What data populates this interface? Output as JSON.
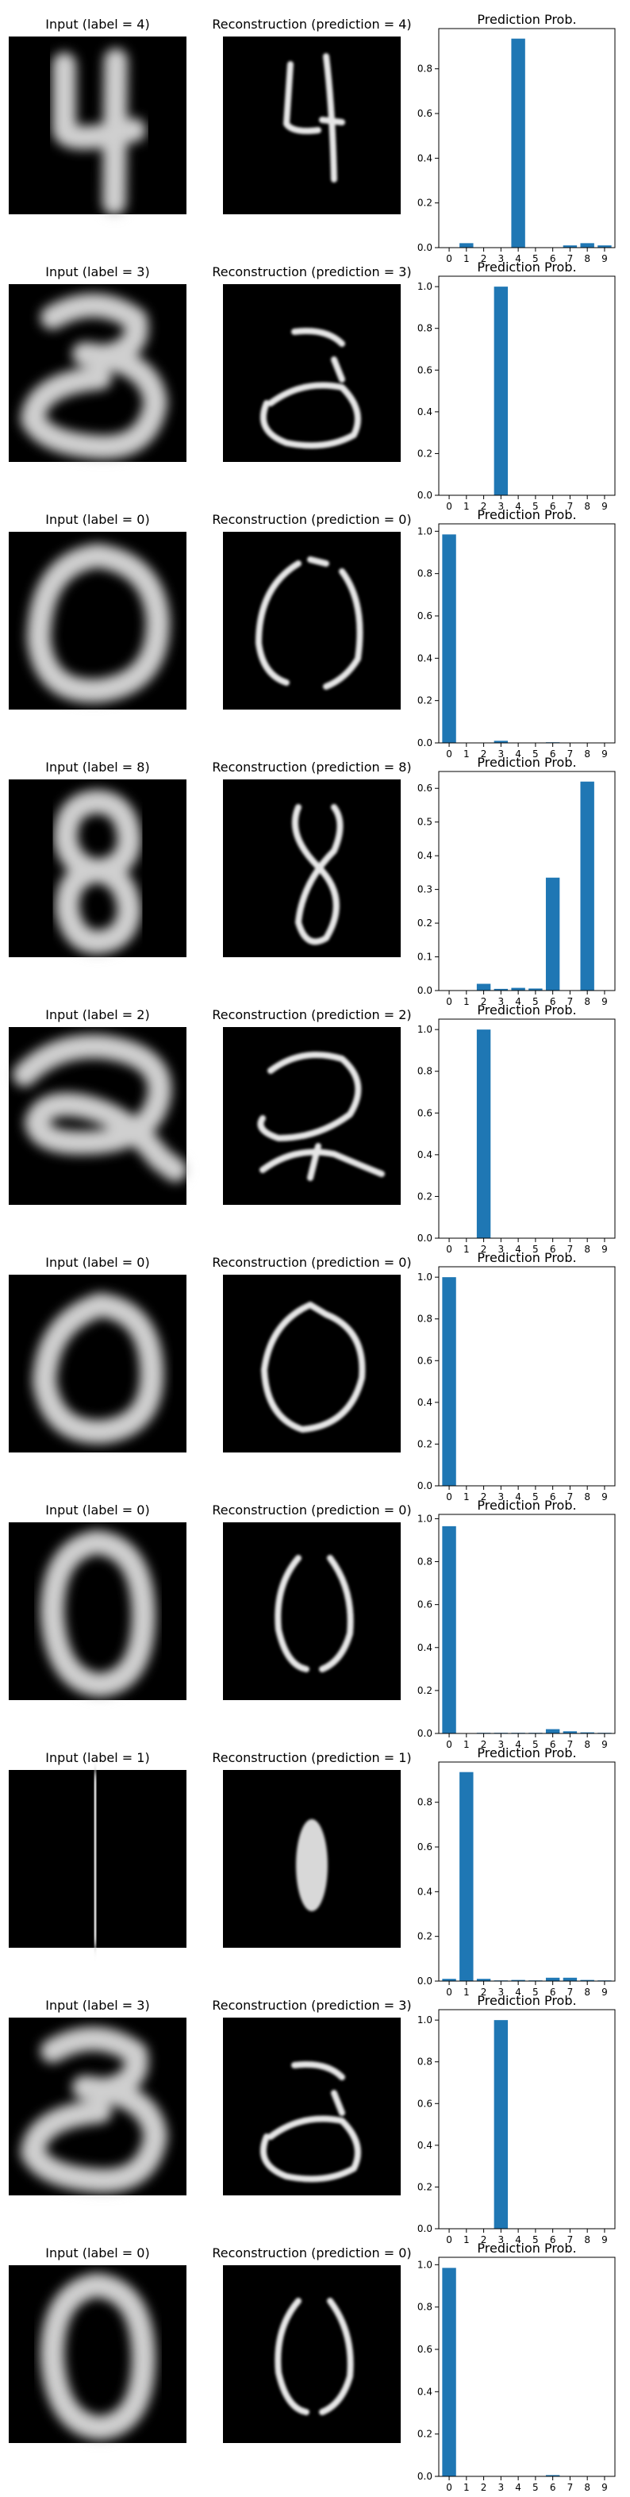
{
  "figure": {
    "panel_colors": {
      "bar": "#1f77b4",
      "image_background": "#000000",
      "axes": "#000000"
    }
  },
  "rows": [
    {
      "input_title": "Input (label = 4)",
      "recon_title": "Reconstruction (prediction = 4)",
      "input_digit": "4",
      "recon_digit": "4"
    },
    {
      "input_title": "Input (label = 3)",
      "recon_title": "Reconstruction (prediction = 3)",
      "input_digit": "3",
      "recon_digit": "3"
    },
    {
      "input_title": "Input (label = 0)",
      "recon_title": "Reconstruction (prediction = 0)",
      "input_digit": "0",
      "recon_digit": "0"
    },
    {
      "input_title": "Input (label = 8)",
      "recon_title": "Reconstruction (prediction = 8)",
      "input_digit": "8",
      "recon_digit": "8"
    },
    {
      "input_title": "Input (label = 2)",
      "recon_title": "Reconstruction (prediction = 2)",
      "input_digit": "2",
      "recon_digit": "2"
    },
    {
      "input_title": "Input (label = 0)",
      "recon_title": "Reconstruction (prediction = 0)",
      "input_digit": "0",
      "recon_digit": "0"
    },
    {
      "input_title": "Input (label = 0)",
      "recon_title": "Reconstruction (prediction = 0)",
      "input_digit": "0",
      "recon_digit": "0"
    },
    {
      "input_title": "Input (label = 1)",
      "recon_title": "Reconstruction (prediction = 1)",
      "input_digit": "1",
      "recon_digit": "1"
    },
    {
      "input_title": "Input (label = 3)",
      "recon_title": "Reconstruction (prediction = 3)",
      "input_digit": "3",
      "recon_digit": "3"
    },
    {
      "input_title": "Input (label = 0)",
      "recon_title": "Reconstruction (prediction = 0)",
      "input_digit": "0",
      "recon_digit": "0"
    }
  ],
  "chart_data": [
    {
      "type": "bar",
      "title": "Prediction Prob.",
      "categories": [
        "0",
        "1",
        "2",
        "3",
        "4",
        "5",
        "6",
        "7",
        "8",
        "9"
      ],
      "values": [
        0.0,
        0.02,
        0.0,
        0.0,
        0.935,
        0.0,
        0.0,
        0.01,
        0.02,
        0.01
      ],
      "ylim": [
        0,
        0.98
      ],
      "yticks": [
        0.0,
        0.2,
        0.4,
        0.6,
        0.8
      ],
      "ytick_labels": [
        "0.0",
        "0.2",
        "0.4",
        "0.6",
        "0.8"
      ]
    },
    {
      "type": "bar",
      "title": "Prediction Prob.",
      "categories": [
        "0",
        "1",
        "2",
        "3",
        "4",
        "5",
        "6",
        "7",
        "8",
        "9"
      ],
      "values": [
        0.0,
        0.0,
        0.0,
        1.0,
        0.0,
        0.0,
        0.0,
        0.0,
        0.0,
        0.0
      ],
      "ylim": [
        0,
        1.05
      ],
      "yticks": [
        0.0,
        0.2,
        0.4,
        0.6,
        0.8,
        1.0
      ],
      "ytick_labels": [
        "0.0",
        "0.2",
        "0.4",
        "0.6",
        "0.8",
        "1.0"
      ]
    },
    {
      "type": "bar",
      "title": "Prediction Prob.",
      "categories": [
        "0",
        "1",
        "2",
        "3",
        "4",
        "5",
        "6",
        "7",
        "8",
        "9"
      ],
      "values": [
        0.985,
        0.0,
        0.0,
        0.01,
        0.0,
        0.0,
        0.003,
        0.0,
        0.0,
        0.0
      ],
      "ylim": [
        0,
        1.035
      ],
      "yticks": [
        0.0,
        0.2,
        0.4,
        0.6,
        0.8,
        1.0
      ],
      "ytick_labels": [
        "0.0",
        "0.2",
        "0.4",
        "0.6",
        "0.8",
        "1.0"
      ]
    },
    {
      "type": "bar",
      "title": "Prediction Prob.",
      "categories": [
        "0",
        "1",
        "2",
        "3",
        "4",
        "5",
        "6",
        "7",
        "8",
        "9"
      ],
      "values": [
        0.0,
        0.0,
        0.02,
        0.005,
        0.008,
        0.006,
        0.335,
        0.0,
        0.62,
        0.0
      ],
      "ylim": [
        0,
        0.65
      ],
      "yticks": [
        0.0,
        0.1,
        0.2,
        0.3,
        0.4,
        0.5,
        0.6
      ],
      "ytick_labels": [
        "0.0",
        "0.1",
        "0.2",
        "0.3",
        "0.4",
        "0.5",
        "0.6"
      ]
    },
    {
      "type": "bar",
      "title": "Prediction Prob.",
      "categories": [
        "0",
        "1",
        "2",
        "3",
        "4",
        "5",
        "6",
        "7",
        "8",
        "9"
      ],
      "values": [
        0.0,
        0.0,
        1.0,
        0.0,
        0.0,
        0.0,
        0.0,
        0.0,
        0.0,
        0.0
      ],
      "ylim": [
        0,
        1.05
      ],
      "yticks": [
        0.0,
        0.2,
        0.4,
        0.6,
        0.8,
        1.0
      ],
      "ytick_labels": [
        "0.0",
        "0.2",
        "0.4",
        "0.6",
        "0.8",
        "1.0"
      ]
    },
    {
      "type": "bar",
      "title": "Prediction Prob.",
      "categories": [
        "0",
        "1",
        "2",
        "3",
        "4",
        "5",
        "6",
        "7",
        "8",
        "9"
      ],
      "values": [
        1.0,
        0.0,
        0.0,
        0.0,
        0.0,
        0.0,
        0.0,
        0.0,
        0.0,
        0.0
      ],
      "ylim": [
        0,
        1.05
      ],
      "yticks": [
        0.0,
        0.2,
        0.4,
        0.6,
        0.8,
        1.0
      ],
      "ytick_labels": [
        "0.0",
        "0.2",
        "0.4",
        "0.6",
        "0.8",
        "1.0"
      ]
    },
    {
      "type": "bar",
      "title": "Prediction Prob.",
      "categories": [
        "0",
        "1",
        "2",
        "3",
        "4",
        "5",
        "6",
        "7",
        "8",
        "9"
      ],
      "values": [
        0.965,
        0.0,
        0.003,
        0.003,
        0.003,
        0.003,
        0.02,
        0.01,
        0.005,
        0.003
      ],
      "ylim": [
        0,
        1.02
      ],
      "yticks": [
        0.0,
        0.2,
        0.4,
        0.6,
        0.8,
        1.0
      ],
      "ytick_labels": [
        "0.0",
        "0.2",
        "0.4",
        "0.6",
        "0.8",
        "1.0"
      ]
    },
    {
      "type": "bar",
      "title": "Prediction Prob.",
      "categories": [
        "0",
        "1",
        "2",
        "3",
        "4",
        "5",
        "6",
        "7",
        "8",
        "9"
      ],
      "values": [
        0.01,
        0.935,
        0.01,
        0.003,
        0.005,
        0.003,
        0.015,
        0.015,
        0.005,
        0.003
      ],
      "ylim": [
        0,
        0.98
      ],
      "yticks": [
        0.0,
        0.2,
        0.4,
        0.6,
        0.8
      ],
      "ytick_labels": [
        "0.0",
        "0.2",
        "0.4",
        "0.6",
        "0.8"
      ]
    },
    {
      "type": "bar",
      "title": "Prediction Prob.",
      "categories": [
        "0",
        "1",
        "2",
        "3",
        "4",
        "5",
        "6",
        "7",
        "8",
        "9"
      ],
      "values": [
        0.0,
        0.0,
        0.0,
        1.0,
        0.0,
        0.0,
        0.0,
        0.0,
        0.0,
        0.0
      ],
      "ylim": [
        0,
        1.05
      ],
      "yticks": [
        0.0,
        0.2,
        0.4,
        0.6,
        0.8,
        1.0
      ],
      "ytick_labels": [
        "0.0",
        "0.2",
        "0.4",
        "0.6",
        "0.8",
        "1.0"
      ]
    },
    {
      "type": "bar",
      "title": "Prediction Prob.",
      "categories": [
        "0",
        "1",
        "2",
        "3",
        "4",
        "5",
        "6",
        "7",
        "8",
        "9"
      ],
      "values": [
        0.985,
        0.0,
        0.0,
        0.0,
        0.0,
        0.0,
        0.006,
        0.0,
        0.0,
        0.0
      ],
      "ylim": [
        0,
        1.035
      ],
      "yticks": [
        0.0,
        0.2,
        0.4,
        0.6,
        0.8,
        1.0
      ],
      "ytick_labels": [
        "0.0",
        "0.2",
        "0.4",
        "0.6",
        "0.8",
        "1.0"
      ]
    }
  ]
}
